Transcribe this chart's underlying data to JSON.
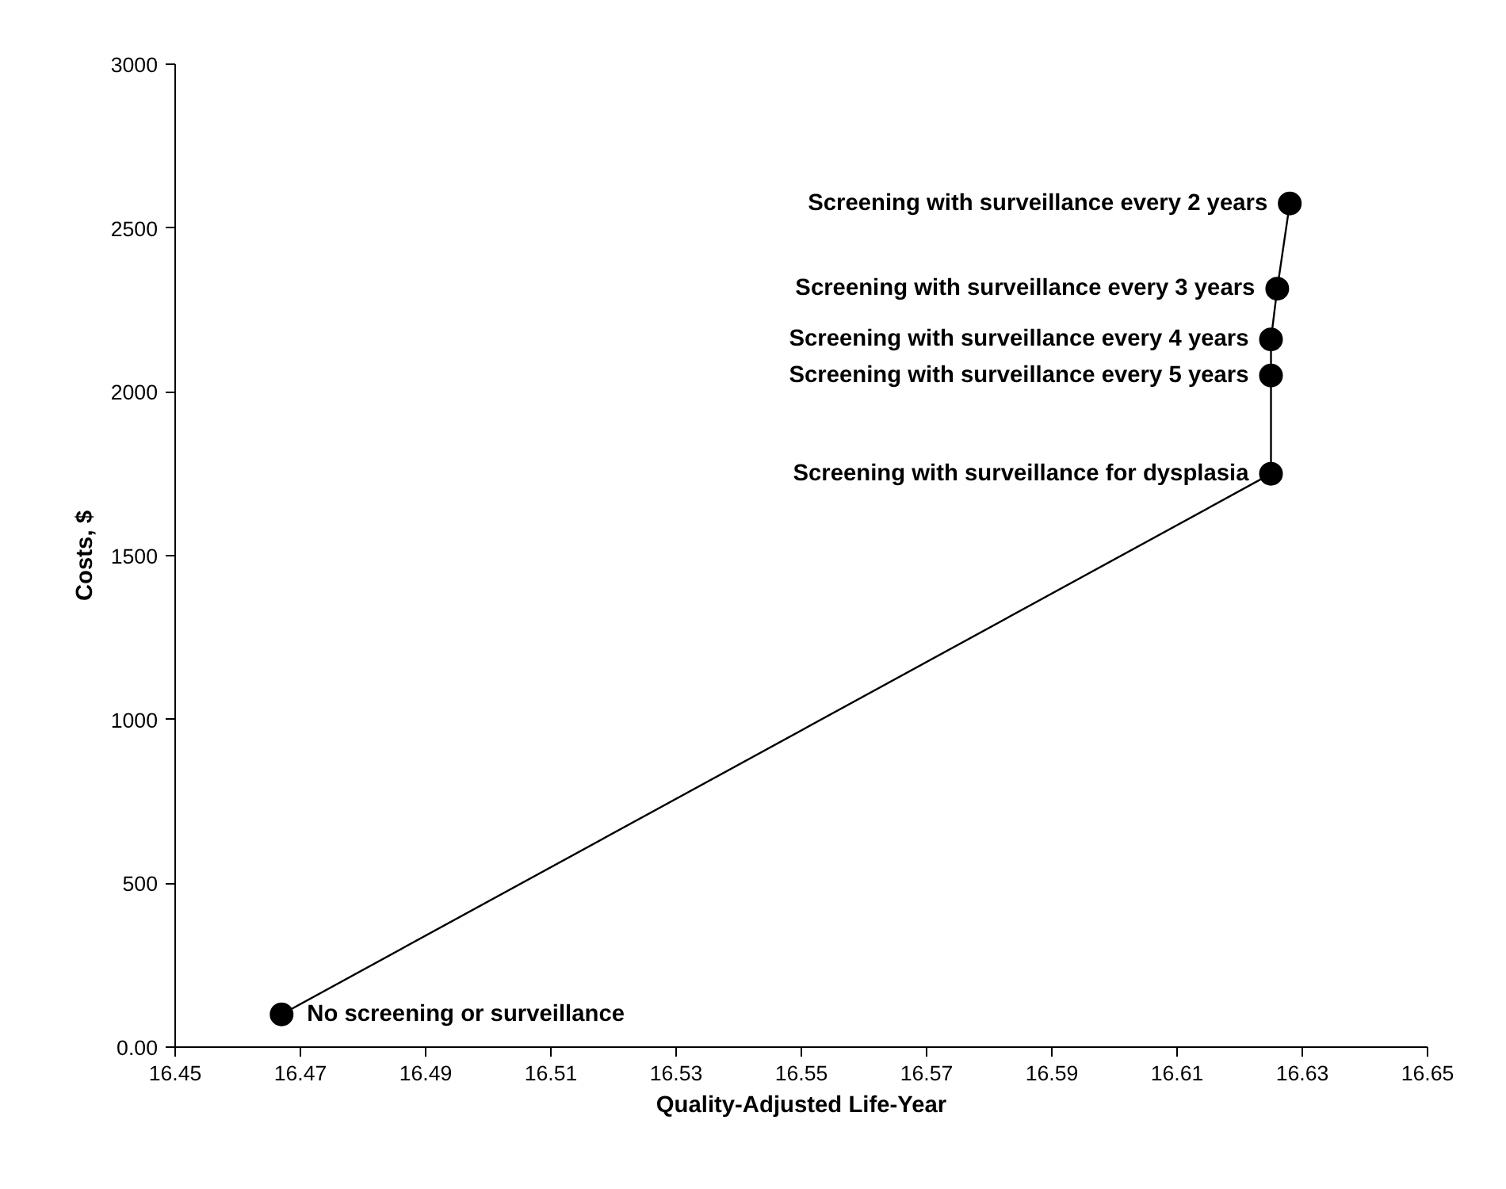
{
  "chart_data": {
    "type": "line",
    "xlabel": "Quality-Adjusted Life-Year",
    "ylabel": "Costs, $",
    "x": [
      16.467,
      16.625,
      16.625,
      16.625,
      16.626,
      16.628
    ],
    "series": [
      {
        "color": "#000000",
        "values": [
          100,
          1750,
          2050,
          2160,
          2315,
          2575
        ]
      }
    ],
    "marker": "circle",
    "line_style": "solid",
    "grid": false,
    "xlim": [
      16.45,
      16.65
    ],
    "xticks": [
      16.45,
      16.47,
      16.49,
      16.51,
      16.53,
      16.55,
      16.57,
      16.59,
      16.61,
      16.63,
      16.65
    ],
    "ylim": [
      0,
      3000
    ],
    "yticks": [
      {
        "value": 0,
        "label": "0.00"
      },
      500,
      1000,
      1500,
      2000,
      2500,
      3000
    ],
    "annotations": [
      {
        "text": "No screening or surveillance",
        "x": 16.467,
        "y": 100
      },
      {
        "text": "Screening with surveillance for dysplasia",
        "x": 16.625,
        "y": 1750
      },
      {
        "text": "Screening with surveillance every 5 years",
        "x": 16.625,
        "y": 2050
      },
      {
        "text": "Screening with surveillance every 4 years",
        "x": 16.625,
        "y": 2160
      },
      {
        "text": "Screening with surveillance every 3 years",
        "x": 16.626,
        "y": 2315
      },
      {
        "text": "Screening with surveillance every 2 years",
        "x": 16.628,
        "y": 2575
      }
    ]
  }
}
